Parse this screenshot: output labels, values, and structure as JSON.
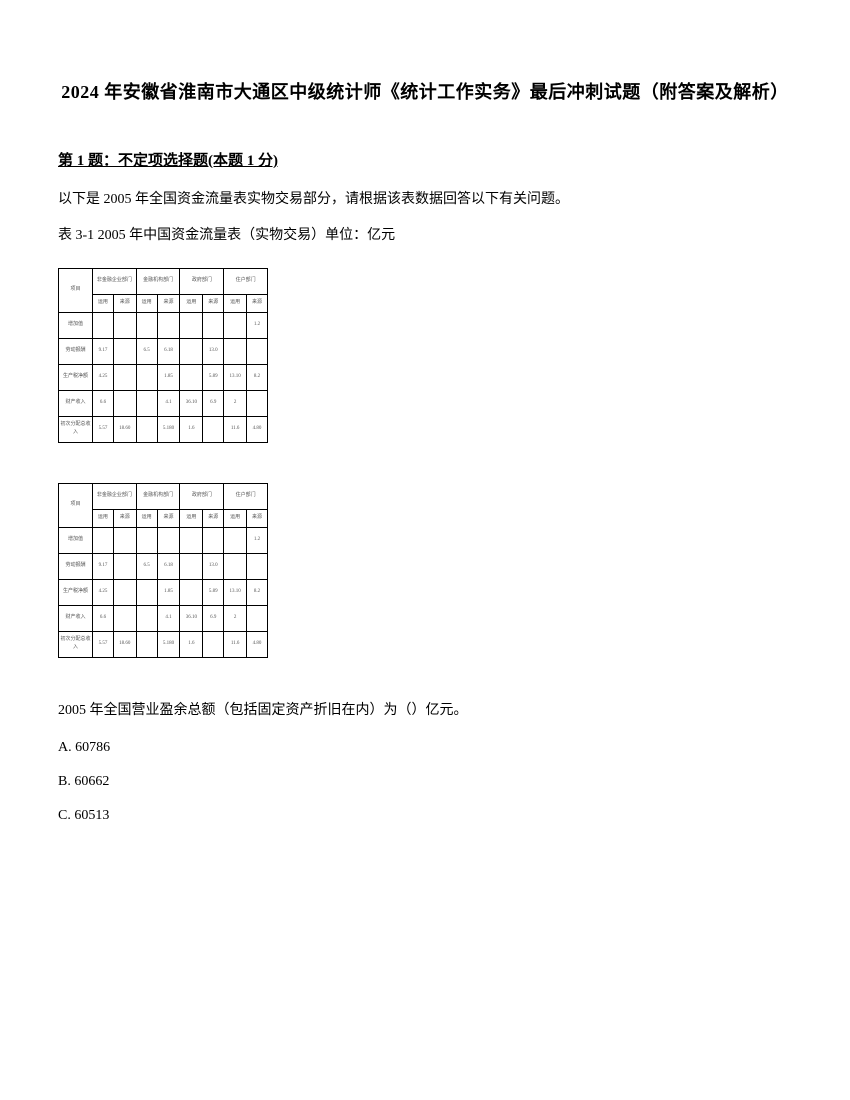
{
  "title": "2024 年安徽省淮南市大通区中级统计师《统计工作实务》最后冲刺试题（附答案及解析）",
  "question": {
    "header": "第 1 题：不定项选择题(本题 1 分)",
    "intro": "以下是 2005 年全国资金流量表实物交易部分，请根据该表数据回答以下有关问题。",
    "tableCaption": "表 3-1  2005 年中国资金流量表（实物交易）单位：亿元",
    "prompt": "2005 年全国营业盈余总额（包括固定资产折旧在内）为（）亿元。",
    "options": {
      "A": "A. 60786",
      "B": "B. 60662",
      "C": "C. 60513"
    }
  },
  "table": {
    "headerTop": {
      "c1": "非金融企业部门",
      "c2": "金融机构部门",
      "c3": "政府部门",
      "c4": "住户部门"
    },
    "headerSub": {
      "item": "项目",
      "use": "运用",
      "src": "来源",
      "useAbbr": "运用",
      "srcAbbr": "来源"
    },
    "rows": [
      {
        "label": "增加值",
        "a": "",
        "b": "",
        "c": "",
        "d": "",
        "e": "",
        "f": "",
        "g": "",
        "h": "1.2"
      },
      {
        "label": "劳动报酬",
        "a": "9.17",
        "b": "",
        "c": "6.5",
        "d": "6.18",
        "e": "",
        "f": "13.0",
        "g": "",
        "h": ""
      },
      {
        "label": "生产税净额",
        "a": "4.25",
        "b": "",
        "c": "",
        "d": "1.85",
        "e": "",
        "f": "5.89",
        "g": "13.10",
        "h": "8.2"
      },
      {
        "label": "财产收入",
        "a": "6.6",
        "b": "",
        "c": "",
        "d": "4.1",
        "e": "36.10",
        "f": "6.9",
        "g": "2",
        "h": ""
      },
      {
        "label": "初次分配总收入",
        "a": "5.57",
        "b": "18.60",
        "c": "",
        "d": "5.180",
        "e": "1.6",
        "f": "",
        "g": "11.6",
        "h": "4.80"
      }
    ]
  }
}
